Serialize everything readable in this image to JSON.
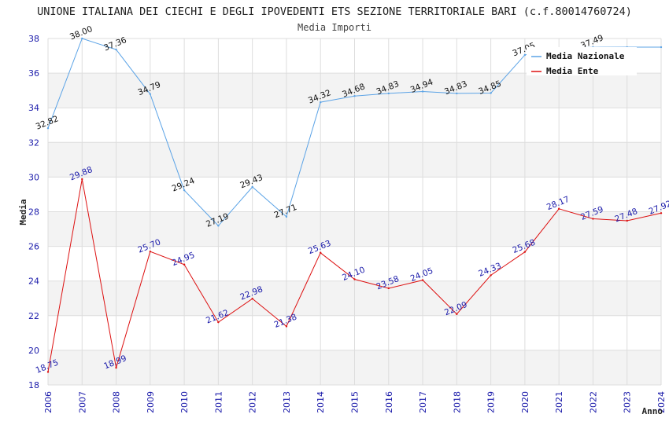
{
  "chart_data": {
    "type": "line",
    "title": "UNIONE ITALIANA DEI CIECHI E DEGLI IPOVEDENTI ETS SEZIONE TERRITORIALE BARI (c.f.80014760724)",
    "subtitle": "Media Importi",
    "xlabel": "Anno",
    "ylabel": "Media",
    "ylim": [
      18,
      38
    ],
    "yticks": [
      18,
      20,
      22,
      24,
      26,
      28,
      30,
      32,
      34,
      36,
      38
    ],
    "x": [
      "2006",
      "2007",
      "2008",
      "2009",
      "2010",
      "2011",
      "2012",
      "2013",
      "2014",
      "2015",
      "2016",
      "2017",
      "2018",
      "2019",
      "2020",
      "2021",
      "2022",
      "2023",
      "2024"
    ],
    "series": [
      {
        "name": "Media Nazionale",
        "color": "#5ba3e6",
        "values": [
          32.82,
          38.0,
          37.36,
          34.79,
          29.24,
          27.19,
          29.43,
          27.71,
          34.32,
          34.68,
          34.83,
          34.94,
          34.83,
          34.85,
          37.05,
          37.44,
          37.49,
          37.5,
          37.5
        ],
        "labels": [
          "32.82",
          "38.00",
          "37.36",
          "34.79",
          "29.24",
          "27.19",
          "29.43",
          "27.71",
          "34.32",
          "34.68",
          "34.83",
          "34.94",
          "34.83",
          "34.85",
          "37.05",
          "",
          "37.49",
          "",
          ""
        ]
      },
      {
        "name": "Media Ente",
        "color": "#dd1111",
        "values": [
          18.75,
          29.88,
          18.99,
          25.7,
          24.95,
          21.62,
          22.98,
          21.38,
          25.63,
          24.1,
          23.58,
          24.05,
          22.09,
          24.33,
          25.68,
          28.17,
          27.59,
          27.48,
          27.92
        ],
        "labels": [
          "18.75",
          "29.88",
          "18.99",
          "25.70",
          "24.95",
          "21.62",
          "22.98",
          "21.38",
          "25.63",
          "24.10",
          "23.58",
          "24.05",
          "22.09",
          "24.33",
          "25.68",
          "28.17",
          "27.59",
          "27.48",
          "27.92"
        ]
      }
    ],
    "grid": true,
    "legend": "top-right"
  }
}
